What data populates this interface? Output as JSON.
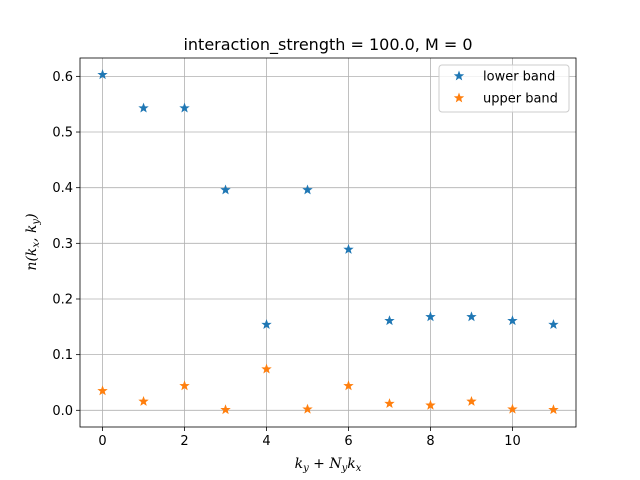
{
  "chart_data": {
    "type": "scatter",
    "title": "interaction_strength = 100.0, M = 0",
    "xlabel": "k_y + N_y k_x",
    "ylabel": "n(k_x, k_y)",
    "xlim": [
      -0.55,
      11.55
    ],
    "ylim": [
      -0.03,
      0.633
    ],
    "xticks": [
      0,
      2,
      4,
      6,
      8,
      10
    ],
    "yticks": [
      0.0,
      0.1,
      0.2,
      0.3,
      0.4,
      0.5,
      0.6
    ],
    "xtick_labels": [
      "0",
      "2",
      "4",
      "6",
      "8",
      "10"
    ],
    "ytick_labels": [
      "0.0",
      "0.1",
      "0.2",
      "0.3",
      "0.4",
      "0.5",
      "0.6"
    ],
    "grid": true,
    "legend_position": "top-right",
    "marker": "star",
    "series": [
      {
        "name": "lower band",
        "color": "#1f77b4",
        "x": [
          0,
          1,
          2,
          3,
          4,
          5,
          6,
          7,
          8,
          9,
          10,
          11
        ],
        "y": [
          0.603,
          0.543,
          0.543,
          0.396,
          0.154,
          0.396,
          0.289,
          0.161,
          0.168,
          0.168,
          0.161,
          0.154
        ]
      },
      {
        "name": "upper band",
        "color": "#ff7f0e",
        "x": [
          0,
          1,
          2,
          3,
          4,
          5,
          6,
          7,
          8,
          9,
          10,
          11
        ],
        "y": [
          0.035,
          0.016,
          0.044,
          0.001,
          0.074,
          0.002,
          0.044,
          0.012,
          0.009,
          0.016,
          0.002,
          0.001
        ]
      }
    ]
  }
}
